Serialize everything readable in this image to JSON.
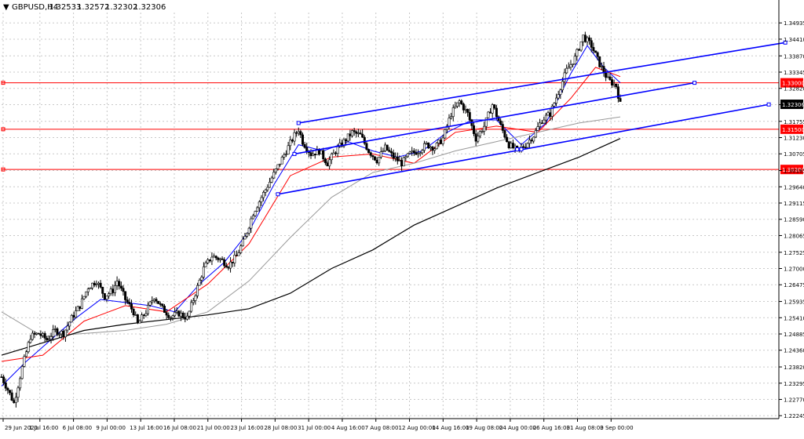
{
  "window": {
    "title": "GBPUSD,H4",
    "ohlc": [
      "1.32533",
      "1.32572",
      "1.32302",
      "1.32306"
    ],
    "menu_glyph": "▼"
  },
  "colors": {
    "background": "#ffffff",
    "grid": "#c8c8c8",
    "candle": "#000000",
    "ma_fast": "#0000ff",
    "ma_mid": "#ff0000",
    "ma_slow": "#999999",
    "ma_long": "#000000",
    "channel": "#0000ff",
    "level": "#ff0000",
    "price_badge": "#000000",
    "level_badge": "#ff0000"
  },
  "chart_data": {
    "type": "candlestick",
    "symbol": "GBPUSD",
    "timeframe": "H4",
    "current_price": 1.32306,
    "y_ticks": [
      "1.34935",
      "1.34410",
      "1.33870",
      "1.33345",
      "1.32820",
      "1.32295",
      "1.31755",
      "1.31230",
      "1.30705",
      "1.30165",
      "1.29640",
      "1.29115",
      "1.28590",
      "1.28065",
      "1.27525",
      "1.27000",
      "1.26475",
      "1.25935",
      "1.25410",
      "1.24885",
      "1.24360",
      "1.23820",
      "1.23295",
      "1.22770",
      "1.22245"
    ],
    "y_range": [
      1.2215,
      1.3527
    ],
    "x_ticks": [
      "29 Jun 2020",
      "1 Jul 16:00",
      "6 Jul 08:00",
      "9 Jul 00:00",
      "13 Jul 16:00",
      "16 Jul 08:00",
      "21 Jul 00:00",
      "23 Jul 16:00",
      "28 Jul 08:00",
      "31 Jul 00:00",
      "4 Aug 16:00",
      "7 Aug 08:00",
      "12 Aug 00:00",
      "14 Aug 16:00",
      "19 Aug 08:00",
      "24 Aug 00:00",
      "26 Aug 16:00",
      "31 Aug 08:00",
      "3 Sep 00:00"
    ],
    "x_range": [
      0,
      150
    ],
    "price_path": [
      [
        0,
        1.235
      ],
      [
        2,
        1.2295
      ],
      [
        3,
        1.2265
      ],
      [
        5,
        1.238
      ],
      [
        7,
        1.248
      ],
      [
        9,
        1.249
      ],
      [
        11,
        1.247
      ],
      [
        13,
        1.25
      ],
      [
        15,
        1.249
      ],
      [
        17,
        1.254
      ],
      [
        19,
        1.258
      ],
      [
        21,
        1.264
      ],
      [
        23,
        1.266
      ],
      [
        25,
        1.261
      ],
      [
        27,
        1.263
      ],
      [
        28,
        1.266
      ],
      [
        30,
        1.26
      ],
      [
        32,
        1.256
      ],
      [
        33,
        1.252
      ],
      [
        35,
        1.256
      ],
      [
        37,
        1.261
      ],
      [
        39,
        1.257
      ],
      [
        41,
        1.2545
      ],
      [
        43,
        1.2555
      ],
      [
        45,
        1.254
      ],
      [
        47,
        1.262
      ],
      [
        49,
        1.27
      ],
      [
        51,
        1.274
      ],
      [
        53,
        1.273
      ],
      [
        55,
        1.271
      ],
      [
        57,
        1.274
      ],
      [
        59,
        1.28
      ],
      [
        61,
        1.288
      ],
      [
        63,
        1.293
      ],
      [
        65,
        1.298
      ],
      [
        67,
        1.303
      ],
      [
        69,
        1.308
      ],
      [
        71,
        1.313
      ],
      [
        72,
        1.315
      ],
      [
        73,
        1.311
      ],
      [
        75,
        1.307
      ],
      [
        77,
        1.308
      ],
      [
        79,
        1.304
      ],
      [
        81,
        1.308
      ],
      [
        83,
        1.311
      ],
      [
        85,
        1.314
      ],
      [
        87,
        1.313
      ],
      [
        89,
        1.308
      ],
      [
        91,
        1.305
      ],
      [
        93,
        1.309
      ],
      [
        95,
        1.306
      ],
      [
        97,
        1.304
      ],
      [
        99,
        1.307
      ],
      [
        101,
        1.308
      ],
      [
        103,
        1.31
      ],
      [
        105,
        1.309
      ],
      [
        107,
        1.312
      ],
      [
        109,
        1.32
      ],
      [
        111,
        1.324
      ],
      [
        113,
        1.32
      ],
      [
        115,
        1.312
      ],
      [
        117,
        1.316
      ],
      [
        119,
        1.323
      ],
      [
        121,
        1.316
      ],
      [
        123,
        1.31
      ],
      [
        125,
        1.308
      ],
      [
        127,
        1.31
      ],
      [
        129,
        1.313
      ],
      [
        131,
        1.318
      ],
      [
        133,
        1.32
      ],
      [
        135,
        1.327
      ],
      [
        137,
        1.334
      ],
      [
        139,
        1.338
      ],
      [
        141,
        1.345
      ],
      [
        143,
        1.342
      ],
      [
        145,
        1.336
      ],
      [
        147,
        1.331
      ],
      [
        149,
        1.329
      ],
      [
        150,
        1.32306
      ]
    ],
    "moving_averages": [
      {
        "id": "ma_fast",
        "points": [
          [
            0,
            1.232
          ],
          [
            6,
            1.24
          ],
          [
            12,
            1.247
          ],
          [
            18,
            1.254
          ],
          [
            24,
            1.26
          ],
          [
            30,
            1.259
          ],
          [
            36,
            1.258
          ],
          [
            42,
            1.256
          ],
          [
            48,
            1.265
          ],
          [
            54,
            1.272
          ],
          [
            60,
            1.282
          ],
          [
            66,
            1.297
          ],
          [
            72,
            1.31
          ],
          [
            78,
            1.308
          ],
          [
            84,
            1.311
          ],
          [
            90,
            1.308
          ],
          [
            96,
            1.306
          ],
          [
            102,
            1.308
          ],
          [
            108,
            1.314
          ],
          [
            114,
            1.318
          ],
          [
            120,
            1.318
          ],
          [
            126,
            1.31
          ],
          [
            132,
            1.317
          ],
          [
            138,
            1.333
          ],
          [
            142,
            1.342
          ],
          [
            146,
            1.335
          ],
          [
            150,
            1.33
          ]
        ]
      },
      {
        "id": "ma_mid",
        "points": [
          [
            0,
            1.24
          ],
          [
            10,
            1.242
          ],
          [
            20,
            1.253
          ],
          [
            30,
            1.258
          ],
          [
            40,
            1.256
          ],
          [
            50,
            1.265
          ],
          [
            60,
            1.278
          ],
          [
            70,
            1.3
          ],
          [
            80,
            1.306
          ],
          [
            90,
            1.307
          ],
          [
            100,
            1.304
          ],
          [
            110,
            1.314
          ],
          [
            120,
            1.316
          ],
          [
            130,
            1.314
          ],
          [
            138,
            1.325
          ],
          [
            144,
            1.335
          ],
          [
            150,
            1.332
          ]
        ]
      },
      {
        "id": "ma_slow",
        "points": [
          [
            0,
            1.256
          ],
          [
            10,
            1.248
          ],
          [
            20,
            1.249
          ],
          [
            30,
            1.25
          ],
          [
            40,
            1.252
          ],
          [
            50,
            1.256
          ],
          [
            60,
            1.266
          ],
          [
            70,
            1.28
          ],
          [
            80,
            1.293
          ],
          [
            90,
            1.301
          ],
          [
            100,
            1.304
          ],
          [
            110,
            1.308
          ],
          [
            120,
            1.311
          ],
          [
            130,
            1.314
          ],
          [
            140,
            1.317
          ],
          [
            150,
            1.319
          ]
        ]
      },
      {
        "id": "ma_long",
        "points": [
          [
            0,
            1.242
          ],
          [
            10,
            1.246
          ],
          [
            20,
            1.25
          ],
          [
            30,
            1.252
          ],
          [
            40,
            1.2535
          ],
          [
            50,
            1.255
          ],
          [
            60,
            1.257
          ],
          [
            70,
            1.262
          ],
          [
            80,
            1.27
          ],
          [
            90,
            1.276
          ],
          [
            100,
            1.284
          ],
          [
            110,
            1.29
          ],
          [
            120,
            1.296
          ],
          [
            130,
            1.301
          ],
          [
            140,
            1.306
          ],
          [
            150,
            1.312
          ]
        ]
      }
    ],
    "channel_lines": [
      {
        "id": "channel-top",
        "from": [
          72,
          1.317
        ],
        "to": [
          190,
          1.343
        ]
      },
      {
        "id": "channel-middle",
        "from": [
          71,
          1.307
        ],
        "to": [
          168,
          1.33
        ]
      },
      {
        "id": "channel-bottom",
        "from": [
          67,
          1.294
        ],
        "to": [
          186,
          1.323
        ]
      },
      {
        "id": "channel-lower-marker",
        "from": [
          125,
          1.3085
        ],
        "to": [
          126,
          1.3085
        ]
      }
    ],
    "horizontal_levels": [
      {
        "label": "1.33000",
        "value": 1.33
      },
      {
        "label": "1.31500",
        "value": 1.315
      },
      {
        "label": "1.30200",
        "value": 1.302
      }
    ],
    "price_badge": "1.32306"
  }
}
